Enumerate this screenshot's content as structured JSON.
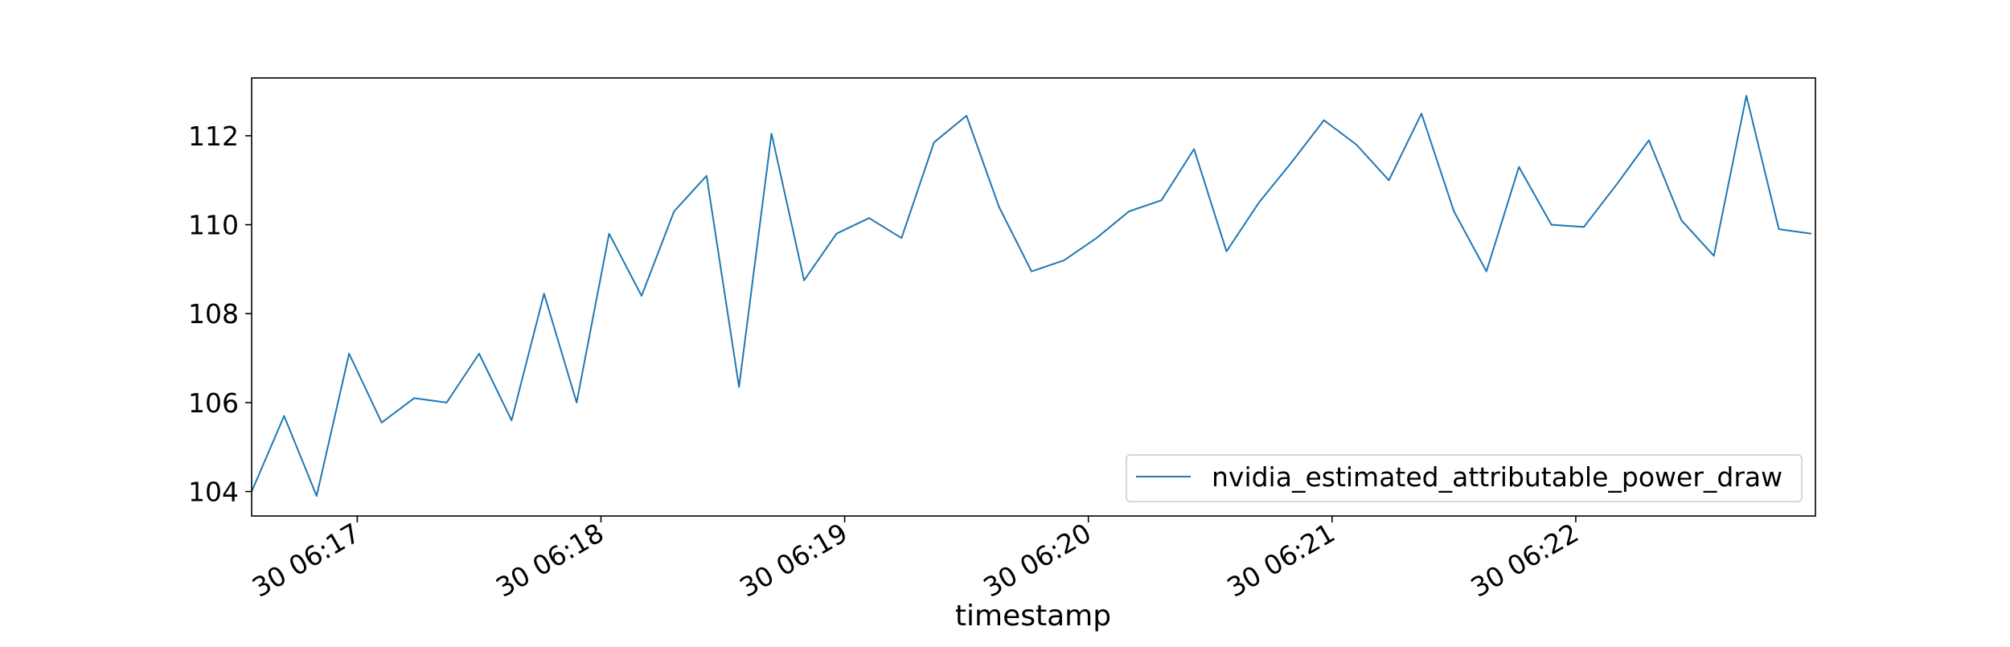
{
  "colors": {
    "series_line": "#1f77b4",
    "axes": "#000000",
    "background": "#ffffff",
    "legend_border": "#cccccc"
  },
  "chart_data": {
    "type": "line",
    "title": "",
    "xlabel": "timestamp",
    "ylabel": "",
    "grid": false,
    "legend_position": "lower-right",
    "x_axis": {
      "kind": "datetime",
      "range": [
        "2024-01-30T06:16:34",
        "2024-01-30T06:22:59"
      ],
      "ticks": [
        {
          "at": "2024-01-30T06:17:00",
          "label": "30 06:17"
        },
        {
          "at": "2024-01-30T06:18:00",
          "label": "30 06:18"
        },
        {
          "at": "2024-01-30T06:19:00",
          "label": "30 06:19"
        },
        {
          "at": "2024-01-30T06:20:00",
          "label": "30 06:20"
        },
        {
          "at": "2024-01-30T06:21:00",
          "label": "30 06:21"
        },
        {
          "at": "2024-01-30T06:22:00",
          "label": "30 06:22"
        }
      ]
    },
    "y_axis": {
      "range": [
        103.45,
        113.3
      ],
      "ticks": [
        {
          "value": 104,
          "label": "104"
        },
        {
          "value": 106,
          "label": "106"
        },
        {
          "value": 108,
          "label": "108"
        },
        {
          "value": 110,
          "label": "110"
        },
        {
          "value": 112,
          "label": "112"
        }
      ]
    },
    "series": [
      {
        "name": "nvidia_estimated_attributable_power_draw",
        "x": [
          "2024-01-30T06:16:34",
          "2024-01-30T06:16:42",
          "2024-01-30T06:16:50",
          "2024-01-30T06:16:58",
          "2024-01-30T06:17:06",
          "2024-01-30T06:17:14",
          "2024-01-30T06:17:22",
          "2024-01-30T06:17:30",
          "2024-01-30T06:17:38",
          "2024-01-30T06:17:46",
          "2024-01-30T06:17:54",
          "2024-01-30T06:18:02",
          "2024-01-30T06:18:10",
          "2024-01-30T06:18:18",
          "2024-01-30T06:18:26",
          "2024-01-30T06:18:34",
          "2024-01-30T06:18:42",
          "2024-01-30T06:18:50",
          "2024-01-30T06:18:58",
          "2024-01-30T06:19:06",
          "2024-01-30T06:19:14",
          "2024-01-30T06:19:22",
          "2024-01-30T06:19:30",
          "2024-01-30T06:19:38",
          "2024-01-30T06:19:46",
          "2024-01-30T06:19:54",
          "2024-01-30T06:20:02",
          "2024-01-30T06:20:10",
          "2024-01-30T06:20:18",
          "2024-01-30T06:20:26",
          "2024-01-30T06:20:34",
          "2024-01-30T06:20:42",
          "2024-01-30T06:20:50",
          "2024-01-30T06:20:58",
          "2024-01-30T06:21:06",
          "2024-01-30T06:21:14",
          "2024-01-30T06:21:22",
          "2024-01-30T06:21:30",
          "2024-01-30T06:21:38",
          "2024-01-30T06:21:46",
          "2024-01-30T06:21:54",
          "2024-01-30T06:22:02",
          "2024-01-30T06:22:10",
          "2024-01-30T06:22:18",
          "2024-01-30T06:22:26",
          "2024-01-30T06:22:34",
          "2024-01-30T06:22:42",
          "2024-01-30T06:22:50",
          "2024-01-30T06:22:58"
        ],
        "values": [
          104.0,
          105.7,
          103.9,
          107.1,
          105.55,
          106.1,
          106.0,
          107.1,
          105.6,
          108.45,
          106.0,
          109.8,
          108.4,
          110.3,
          111.1,
          106.35,
          112.05,
          108.75,
          109.8,
          110.15,
          109.7,
          111.85,
          112.45,
          110.4,
          108.95,
          109.2,
          109.7,
          110.3,
          110.55,
          111.7,
          109.4,
          110.5,
          111.4,
          112.35,
          111.8,
          111.0,
          112.5,
          110.3,
          108.95,
          111.3,
          110.0,
          109.95,
          110.9,
          111.9,
          110.1,
          109.3,
          112.9,
          109.9,
          109.8
        ]
      }
    ]
  }
}
